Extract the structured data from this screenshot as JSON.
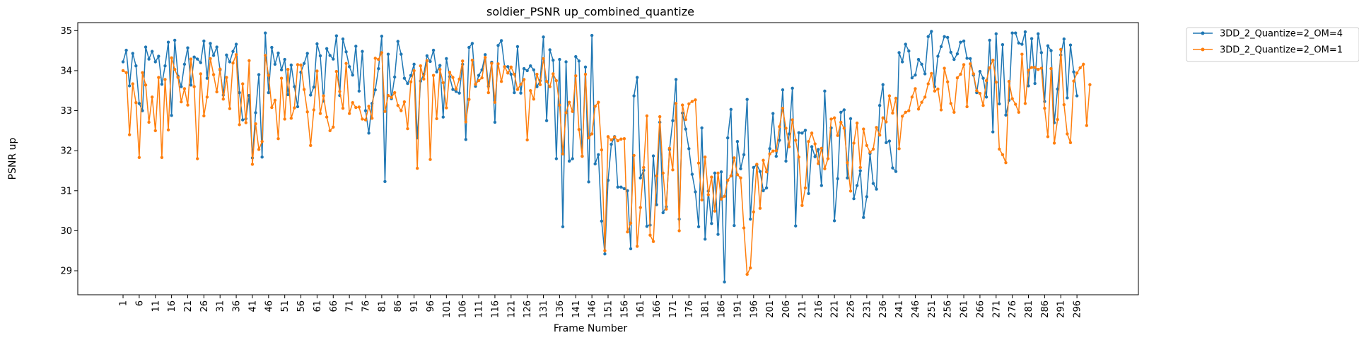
{
  "chart_data": {
    "type": "line",
    "title": "soldier_PSNR up_combined_quantize",
    "xlabel": "Frame Number",
    "ylabel": "PSNR up",
    "xlim": [
      -13,
      315
    ],
    "ylim": [
      28.4,
      35.2
    ],
    "yticks": [
      29,
      30,
      31,
      32,
      33,
      34,
      35
    ],
    "xtick_start": 1,
    "xtick_step": 5,
    "xtick_end": 296,
    "legend_position": "outside-top-right",
    "grid": false,
    "series": [
      {
        "name": "3DD_2_Quantize=2_OM=4",
        "color": "#1f77b4",
        "values": [
          34.22,
          34.51,
          33.62,
          34.43,
          34.12,
          33.18,
          33.0,
          34.59,
          34.29,
          34.48,
          34.22,
          34.36,
          33.66,
          34.12,
          34.71,
          32.88,
          34.76,
          33.86,
          33.6,
          34.16,
          34.57,
          33.64,
          34.34,
          34.29,
          34.2,
          34.74,
          33.81,
          34.68,
          34.38,
          34.59,
          34.02,
          33.39,
          34.39,
          34.22,
          34.48,
          34.66,
          33.45,
          32.77,
          32.8,
          33.38,
          31.82,
          32.95,
          33.9,
          31.84,
          34.94,
          33.45,
          34.58,
          34.16,
          34.44,
          34.02,
          34.28,
          33.4,
          34.14,
          33.6,
          33.1,
          33.96,
          34.18,
          34.43,
          33.39,
          33.59,
          34.67,
          34.37,
          33.24,
          34.55,
          34.38,
          34.29,
          34.87,
          33.38,
          34.79,
          34.47,
          34.1,
          33.89,
          34.61,
          33.49,
          34.48,
          33.0,
          32.44,
          33.18,
          33.52,
          34.05,
          34.86,
          31.23,
          34.41,
          33.3,
          33.84,
          34.73,
          34.41,
          33.81,
          33.68,
          33.88,
          34.16,
          32.32,
          33.74,
          33.91,
          34.37,
          34.23,
          34.51,
          33.97,
          34.13,
          32.84,
          34.3,
          33.85,
          33.53,
          33.48,
          33.44,
          34.16,
          32.28,
          34.58,
          34.68,
          33.61,
          33.88,
          34.02,
          34.4,
          33.61,
          34.21,
          32.71,
          34.63,
          34.75,
          34.1,
          34.1,
          33.91,
          33.45,
          34.6,
          33.44,
          34.05,
          34.0,
          34.12,
          34.02,
          33.6,
          33.75,
          34.84,
          32.75,
          34.52,
          34.26,
          31.8,
          34.28,
          30.1,
          34.22,
          31.74,
          31.8,
          34.35,
          34.24,
          31.86,
          34.09,
          31.22,
          34.88,
          31.67,
          31.9,
          30.24,
          29.42,
          31.26,
          32.16,
          32.35,
          31.09,
          31.09,
          31.05,
          31.0,
          29.55,
          33.37,
          33.83,
          31.32,
          31.51,
          30.11,
          30.14,
          31.87,
          30.65,
          32.71,
          30.45,
          30.6,
          32.03,
          32.75,
          33.78,
          30.29,
          32.94,
          32.54,
          32.05,
          31.41,
          30.97,
          30.1,
          32.57,
          29.79,
          30.99,
          30.18,
          31.44,
          29.91,
          31.47,
          28.72,
          32.32,
          33.03,
          30.13,
          32.23,
          31.55,
          31.9,
          33.28,
          30.29,
          31.58,
          31.65,
          31.48,
          31.0,
          31.07,
          32.05,
          32.93,
          31.86,
          32.26,
          33.52,
          31.74,
          32.42,
          33.56,
          30.12,
          32.45,
          32.44,
          32.51,
          30.93,
          32.1,
          31.85,
          32.03,
          31.13,
          33.49,
          31.8,
          32.57,
          30.25,
          31.3,
          32.96,
          33.02,
          31.32,
          32.8,
          30.8,
          31.13,
          31.5,
          30.33,
          30.85,
          31.93,
          31.18,
          31.04,
          33.13,
          33.65,
          32.2,
          32.24,
          31.57,
          31.48,
          34.45,
          34.22,
          34.66,
          34.49,
          33.82,
          33.89,
          34.28,
          34.16,
          33.92,
          34.85,
          34.98,
          33.6,
          34.36,
          34.6,
          34.85,
          34.83,
          34.46,
          34.28,
          34.42,
          34.71,
          34.74,
          34.31,
          34.3,
          33.89,
          33.45,
          33.98,
          33.81,
          33.34,
          34.76,
          32.47,
          34.92,
          33.17,
          34.65,
          32.89,
          33.26,
          34.94,
          34.94,
          34.69,
          34.66,
          34.97,
          33.62,
          34.8,
          33.68,
          34.92,
          34.45,
          33.23,
          34.62,
          34.5,
          32.7,
          33.54,
          34.39,
          34.79,
          33.32,
          34.64,
          33.97,
          33.37
        ]
      },
      {
        "name": "3DD_2_Quantize=2_OM=1",
        "color": "#ff7f0e",
        "values": [
          34.0,
          33.95,
          32.4,
          33.67,
          33.2,
          31.83,
          33.95,
          33.64,
          32.71,
          33.34,
          32.5,
          33.83,
          31.83,
          33.78,
          32.52,
          34.32,
          34.03,
          33.83,
          33.22,
          33.55,
          33.14,
          34.29,
          33.6,
          31.8,
          33.92,
          32.87,
          33.34,
          34.3,
          33.9,
          33.47,
          34.04,
          33.29,
          33.83,
          33.05,
          34.19,
          34.4,
          32.65,
          33.67,
          32.7,
          34.25,
          31.66,
          32.67,
          32.03,
          32.23,
          34.38,
          33.88,
          33.08,
          33.26,
          32.3,
          33.81,
          32.79,
          34.03,
          32.81,
          33.07,
          34.15,
          34.14,
          33.53,
          32.97,
          32.13,
          33.02,
          33.99,
          32.93,
          33.37,
          32.84,
          32.5,
          32.59,
          33.98,
          33.48,
          33.06,
          34.18,
          32.93,
          33.2,
          33.08,
          33.09,
          32.79,
          32.77,
          33.11,
          32.81,
          34.31,
          34.28,
          34.45,
          32.98,
          33.38,
          33.33,
          33.45,
          33.13,
          33.0,
          33.22,
          32.55,
          33.72,
          34.0,
          31.56,
          34.12,
          33.79,
          34.25,
          31.78,
          33.88,
          32.8,
          34.03,
          33.7,
          33.07,
          33.96,
          33.83,
          33.54,
          33.79,
          34.24,
          32.72,
          33.28,
          34.26,
          33.66,
          33.75,
          33.82,
          34.33,
          33.45,
          34.18,
          33.21,
          34.17,
          33.73,
          34.1,
          33.94,
          34.09,
          33.91,
          33.53,
          33.66,
          33.78,
          32.27,
          33.5,
          33.29,
          33.91,
          33.65,
          34.3,
          33.73,
          33.6,
          33.92,
          33.75,
          33.14,
          31.92,
          32.95,
          33.21,
          32.98,
          33.87,
          32.53,
          31.86,
          33.91,
          32.32,
          32.42,
          33.11,
          33.21,
          32.02,
          29.5,
          32.35,
          32.27,
          32.34,
          32.25,
          32.29,
          32.3,
          29.97,
          30.19,
          31.88,
          29.61,
          30.58,
          31.58,
          32.87,
          29.89,
          29.73,
          31.37,
          32.85,
          31.44,
          30.54,
          32.06,
          31.52,
          33.18,
          30.0,
          33.14,
          32.78,
          33.17,
          33.23,
          33.27,
          31.69,
          30.77,
          31.84,
          30.9,
          31.34,
          30.49,
          31.44,
          30.79,
          30.86,
          31.26,
          31.37,
          31.82,
          31.4,
          31.32,
          30.07,
          28.91,
          29.07,
          30.47,
          31.66,
          30.56,
          31.76,
          31.47,
          31.92,
          31.99,
          32.0,
          32.6,
          33.06,
          32.56,
          32.1,
          32.77,
          32.26,
          31.84,
          30.63,
          31.07,
          32.23,
          32.44,
          32.17,
          31.68,
          32.06,
          31.55,
          31.8,
          32.79,
          32.82,
          32.38,
          32.71,
          32.56,
          31.7,
          30.99,
          32.19,
          32.69,
          31.58,
          32.54,
          32.13,
          31.96,
          32.04,
          32.58,
          32.39,
          32.82,
          32.72,
          33.37,
          32.94,
          33.31,
          32.05,
          32.86,
          32.96,
          33.0,
          33.34,
          33.55,
          33.04,
          33.21,
          33.34,
          33.67,
          33.93,
          33.49,
          33.54,
          33.02,
          34.06,
          33.72,
          33.18,
          32.96,
          33.82,
          33.91,
          34.15,
          33.1,
          34.17,
          33.92,
          33.5,
          33.43,
          33.13,
          33.75,
          34.07,
          34.26,
          33.71,
          32.04,
          31.9,
          31.7,
          33.73,
          33.3,
          33.16,
          32.96,
          34.41,
          33.18,
          34.01,
          34.08,
          34.08,
          34.03,
          34.06,
          33.06,
          32.35,
          34.05,
          32.19,
          32.78,
          34.53,
          33.15,
          32.42,
          32.2,
          33.74,
          33.94,
          34.07,
          34.16,
          32.63,
          33.65
        ]
      }
    ]
  }
}
